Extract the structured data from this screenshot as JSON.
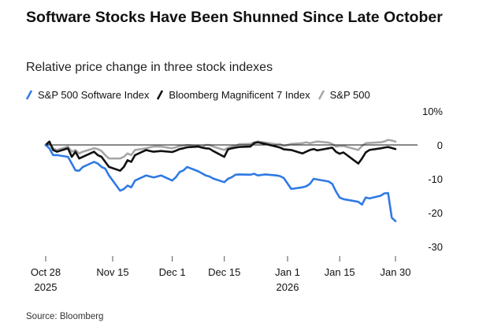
{
  "title": "Software Stocks Have Been Shunned Since Late October",
  "subtitle": "Relative price change in three stock indexes",
  "source": "Source: Bloomberg",
  "colors": {
    "software": "#2f7ae5",
    "mag7": "#111111",
    "sp500": "#a6a6a6",
    "zero_line": "#111111",
    "tick": "#555555"
  },
  "chart_data": {
    "type": "line",
    "title": "Software Stocks Have Been Shunned Since Late October",
    "subtitle": "Relative price change in three stock indexes",
    "y_unit": "%",
    "ylim": [
      -30,
      10
    ],
    "y_ticks": [
      10,
      0,
      -10,
      -20,
      -30
    ],
    "y_tick_labels": [
      "10%",
      "0",
      "-10",
      "-20",
      "-30"
    ],
    "x_ticks": [
      {
        "date": "2025-10-28",
        "label": "Oct 28",
        "label2": "2025"
      },
      {
        "date": "2025-11-15",
        "label": "Nov 15",
        "label2": ""
      },
      {
        "date": "2025-12-01",
        "label": "Dec 1",
        "label2": ""
      },
      {
        "date": "2025-12-15",
        "label": "Dec 15",
        "label2": ""
      },
      {
        "date": "2026-01-01",
        "label": "Jan 1",
        "label2": "2026"
      },
      {
        "date": "2026-01-15",
        "label": "Jan 15",
        "label2": ""
      },
      {
        "date": "2026-01-30",
        "label": "Jan 30",
        "label2": ""
      }
    ],
    "xlim": [
      "2025-10-28",
      "2026-01-30"
    ],
    "legend_position": "top-left",
    "grid": false,
    "x": [
      "2025-10-28",
      "2025-10-29",
      "2025-10-30",
      "2025-10-31",
      "2025-11-03",
      "2025-11-04",
      "2025-11-05",
      "2025-11-06",
      "2025-11-07",
      "2025-11-10",
      "2025-11-11",
      "2025-11-12",
      "2025-11-13",
      "2025-11-14",
      "2025-11-17",
      "2025-11-18",
      "2025-11-19",
      "2025-11-20",
      "2025-11-21",
      "2025-11-24",
      "2025-11-25",
      "2025-11-26",
      "2025-11-28",
      "2025-12-01",
      "2025-12-02",
      "2025-12-03",
      "2025-12-04",
      "2025-12-05",
      "2025-12-08",
      "2025-12-09",
      "2025-12-10",
      "2025-12-11",
      "2025-12-12",
      "2025-12-15",
      "2025-12-16",
      "2025-12-17",
      "2025-12-18",
      "2025-12-19",
      "2025-12-22",
      "2025-12-23",
      "2025-12-24",
      "2025-12-26",
      "2025-12-29",
      "2025-12-30",
      "2025-12-31",
      "2026-01-02",
      "2026-01-05",
      "2026-01-06",
      "2026-01-07",
      "2026-01-08",
      "2026-01-09",
      "2026-01-12",
      "2026-01-13",
      "2026-01-14",
      "2026-01-15",
      "2026-01-16",
      "2026-01-20",
      "2026-01-21",
      "2026-01-22",
      "2026-01-23",
      "2026-01-26",
      "2026-01-27",
      "2026-01-28",
      "2026-01-29",
      "2026-01-30"
    ],
    "series": [
      {
        "name": "S&P 500 Software Index",
        "color": "#2f7ae5",
        "values": [
          0.0,
          -1.0,
          -3.0,
          -3.0,
          -3.5,
          -5.5,
          -7.5,
          -7.6,
          -6.5,
          -5.0,
          -5.5,
          -6.5,
          -7.0,
          -9.0,
          -13.5,
          -13.0,
          -12.0,
          -12.5,
          -10.5,
          -9.0,
          -9.3,
          -9.6,
          -9.0,
          -10.5,
          -9.5,
          -8.0,
          -7.5,
          -6.5,
          -7.8,
          -8.4,
          -9.0,
          -9.3,
          -9.9,
          -11.0,
          -10.0,
          -9.5,
          -8.8,
          -8.7,
          -8.8,
          -8.5,
          -9.0,
          -8.7,
          -9.0,
          -9.2,
          -9.8,
          -13.0,
          -12.5,
          -12.2,
          -11.5,
          -10.0,
          -10.2,
          -10.8,
          -11.5,
          -13.7,
          -15.5,
          -16.0,
          -16.8,
          -17.6,
          -15.5,
          -15.8,
          -15.0,
          -14.3,
          -14.2,
          -21.5,
          -22.5
        ]
      },
      {
        "name": "Bloomberg Magnificent 7 Index",
        "color": "#111111",
        "values": [
          0.0,
          1.0,
          -1.5,
          -2.0,
          -1.0,
          -3.5,
          -2.0,
          -4.0,
          -3.5,
          -2.0,
          -3.0,
          -3.5,
          -5.0,
          -6.5,
          -7.6,
          -6.5,
          -4.5,
          -5.0,
          -3.0,
          -1.5,
          -1.8,
          -2.0,
          -1.8,
          -2.1,
          -1.7,
          -1.2,
          -1.0,
          -0.7,
          -0.5,
          -0.8,
          -1.0,
          -1.1,
          -1.8,
          -3.5,
          -1.3,
          -1.0,
          -0.8,
          -0.6,
          -0.5,
          0.5,
          0.8,
          0.3,
          -0.5,
          -0.8,
          -1.3,
          -1.5,
          -2.5,
          -2.0,
          -1.5,
          -1.2,
          -1.6,
          -1.0,
          -0.8,
          -2.0,
          -2.6,
          -2.2,
          -5.5,
          -4.0,
          -2.2,
          -1.5,
          -1.0,
          -0.8,
          -0.6,
          -0.9,
          -1.2
        ]
      },
      {
        "name": "S&P 500",
        "color": "#a6a6a6",
        "values": [
          0.0,
          0.5,
          -1.0,
          -1.5,
          -0.5,
          -2.0,
          -1.5,
          -2.5,
          -2.0,
          -1.0,
          -1.2,
          -1.8,
          -3.0,
          -4.0,
          -4.0,
          -3.5,
          -2.5,
          -3.0,
          -1.5,
          -1.0,
          -0.7,
          -0.5,
          -0.5,
          -1.0,
          -0.7,
          -0.3,
          -0.2,
          0.0,
          -0.3,
          -0.6,
          0.0,
          0.0,
          -0.5,
          -1.5,
          -0.8,
          -0.5,
          -0.3,
          0.2,
          0.3,
          0.8,
          1.0,
          0.7,
          0.2,
          0.2,
          -0.3,
          0.3,
          0.5,
          0.8,
          0.5,
          0.8,
          1.0,
          0.7,
          0.3,
          -0.5,
          -0.3,
          -0.3,
          -1.5,
          -0.3,
          0.5,
          0.6,
          0.8,
          1.0,
          1.5,
          1.3,
          1.0
        ]
      }
    ]
  }
}
